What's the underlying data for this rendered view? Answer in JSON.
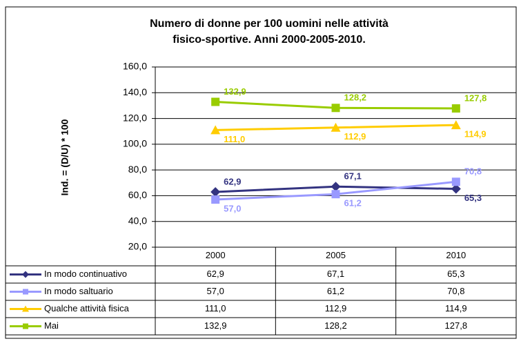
{
  "chart_data": {
    "type": "line",
    "title": [
      "Numero di donne per 100 uomini nelle attività",
      "fisico-sportive. Anni 2000-2005-2010."
    ],
    "y_label": "Ind. = (D/U) * 100",
    "categories": [
      "2000",
      "2005",
      "2010"
    ],
    "series": [
      {
        "name": "In modo continuativo",
        "color": "#333380",
        "marker": "diamond",
        "values": [
          62.9,
          67.1,
          65.3
        ],
        "value_labels": [
          "62,9",
          "67,1",
          "65,3"
        ]
      },
      {
        "name": "In modo saltuario",
        "color": "#9999ff",
        "marker": "square",
        "values": [
          57.0,
          61.2,
          70.8
        ],
        "value_labels": [
          "57,0",
          "61,2",
          "70,8"
        ]
      },
      {
        "name": "Qualche attività fisica",
        "color": "#ffcc00",
        "marker": "triangle",
        "values": [
          111.0,
          112.9,
          114.9
        ],
        "value_labels": [
          "111,0",
          "112,9",
          "114,9"
        ]
      },
      {
        "name": "Mai",
        "color": "#99cc00",
        "marker": "square",
        "values": [
          132.9,
          128.2,
          127.8
        ],
        "value_labels": [
          "132,9",
          "128,2",
          "127,8"
        ]
      }
    ],
    "ylim": [
      20,
      160
    ],
    "yticks": [
      {
        "value": 20,
        "label": "20,0"
      },
      {
        "value": 40,
        "label": "40,0"
      },
      {
        "value": 60,
        "label": "60,0"
      },
      {
        "value": 80,
        "label": "80,0"
      },
      {
        "value": 100,
        "label": "100,0"
      },
      {
        "value": 120,
        "label": "120,0"
      },
      {
        "value": 140,
        "label": "140,0"
      },
      {
        "value": 160,
        "label": "160,0"
      }
    ],
    "grid": true,
    "data_table": true
  }
}
